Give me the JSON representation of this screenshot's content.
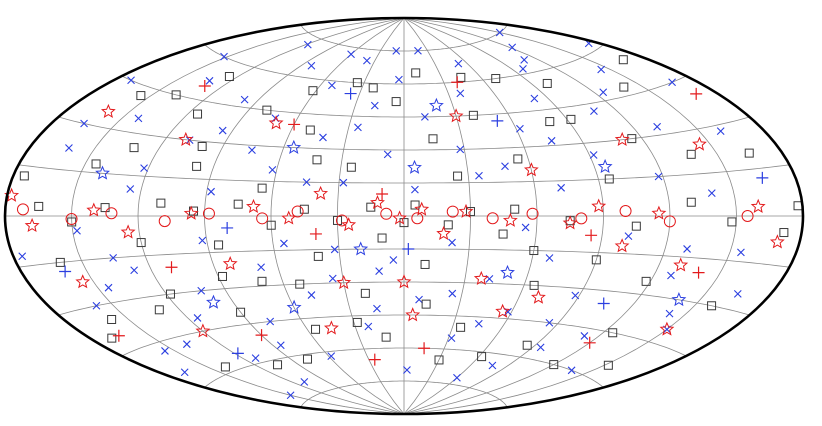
{
  "chart_data": {
    "type": "scatter",
    "projection": "aitoff",
    "coordinate_system": "galactic",
    "grid": true,
    "grid_longitudes_deg": [
      -150,
      -120,
      -90,
      -60,
      -30,
      0,
      30,
      60,
      90,
      120,
      150
    ],
    "grid_latitudes_deg": [
      -75,
      -60,
      -45,
      -30,
      -15,
      0,
      15,
      30,
      45,
      60,
      75
    ],
    "title": "",
    "xlabel": "",
    "ylabel": "",
    "legend": "none",
    "series": [
      {
        "marker": "x",
        "color": "#2b3fe0",
        "points": [
          [
            -175,
            62
          ],
          [
            -168,
            45
          ],
          [
            -160,
            28
          ],
          [
            -155,
            -12
          ],
          [
            -150,
            -40
          ],
          [
            -145,
            55
          ],
          [
            -140,
            8
          ],
          [
            -138,
            -60
          ],
          [
            -132,
            33
          ],
          [
            -128,
            -22
          ],
          [
            -122,
            70
          ],
          [
            -118,
            15
          ],
          [
            -112,
            -48
          ],
          [
            -108,
            42
          ],
          [
            -102,
            -8
          ],
          [
            -98,
            62
          ],
          [
            -92,
            25
          ],
          [
            -88,
            -33
          ],
          [
            -82,
            50
          ],
          [
            -78,
            -65
          ],
          [
            -72,
            12
          ],
          [
            -68,
            -18
          ],
          [
            -62,
            38
          ],
          [
            -58,
            -42
          ],
          [
            -52,
            68
          ],
          [
            -48,
            22
          ],
          [
            -42,
            -28
          ],
          [
            -38,
            55
          ],
          [
            -32,
            -55
          ],
          [
            -28,
            30
          ],
          [
            -22,
            -12
          ],
          [
            -18,
            75
          ],
          [
            -12,
            45
          ],
          [
            -8,
            -38
          ],
          [
            -3,
            -70
          ],
          [
            4,
            62
          ],
          [
            8,
            28
          ],
          [
            12,
            -25
          ],
          [
            18,
            50
          ],
          [
            22,
            -50
          ],
          [
            28,
            15
          ],
          [
            32,
            -15
          ],
          [
            38,
            70
          ],
          [
            42,
            35
          ],
          [
            48,
            -35
          ],
          [
            52,
            58
          ],
          [
            58,
            -62
          ],
          [
            62,
            20
          ],
          [
            68,
            -22
          ],
          [
            72,
            42
          ],
          [
            78,
            -45
          ],
          [
            82,
            65
          ],
          [
            88,
            10
          ],
          [
            92,
            -10
          ],
          [
            98,
            48
          ],
          [
            102,
            -30
          ],
          [
            108,
            30
          ],
          [
            112,
            -58
          ],
          [
            118,
            72
          ],
          [
            122,
            18
          ],
          [
            128,
            -20
          ],
          [
            132,
            52
          ],
          [
            138,
            -48
          ],
          [
            142,
            35
          ],
          [
            148,
            -5
          ],
          [
            152,
            60
          ],
          [
            158,
            -30
          ],
          [
            162,
            22
          ],
          [
            168,
            -55
          ],
          [
            172,
            45
          ],
          [
            176,
            -12
          ],
          [
            -165,
            -25
          ],
          [
            -142,
            -35
          ],
          [
            -125,
            48
          ],
          [
            -95,
            -55
          ],
          [
            -75,
            32
          ],
          [
            -45,
            -48
          ],
          [
            -25,
            -35
          ],
          [
            15,
            -42
          ],
          [
            35,
            -28
          ],
          [
            55,
            -12
          ],
          [
            75,
            28
          ],
          [
            95,
            35
          ],
          [
            115,
            -40
          ],
          [
            135,
            -15
          ],
          [
            155,
            -48
          ],
          [
            165,
            30
          ],
          [
            -110,
            65
          ],
          [
            -60,
            -72
          ],
          [
            10,
            75
          ],
          [
            60,
            72
          ],
          [
            110,
            -70
          ],
          [
            -150,
            75
          ],
          [
            150,
            -72
          ],
          [
            -85,
            -45
          ],
          [
            85,
            -55
          ],
          [
            -35,
            18
          ],
          [
            25,
            40
          ],
          [
            -5,
            12
          ],
          [
            5,
            -20
          ],
          [
            45,
            15
          ],
          [
            -55,
            -5
          ],
          [
            125,
            10
          ],
          [
            -130,
            -12
          ],
          [
            145,
            -25
          ]
        ]
      },
      {
        "marker": "square",
        "color": "#3a3a3a",
        "points": [
          [
            -178,
            3
          ],
          [
            -172,
            -5
          ],
          [
            -165,
            20
          ],
          [
            -158,
            -30
          ],
          [
            -148,
            -2
          ],
          [
            -140,
            48
          ],
          [
            -130,
            5
          ],
          [
            -125,
            -45
          ],
          [
            -115,
            30
          ],
          [
            -105,
            -4
          ],
          [
            -95,
            15
          ],
          [
            -90,
            -18
          ],
          [
            -80,
            40
          ],
          [
            -75,
            -2
          ],
          [
            -65,
            -30
          ],
          [
            -55,
            25
          ],
          [
            -50,
            3
          ],
          [
            -45,
            -8
          ],
          [
            -40,
            45
          ],
          [
            -35,
            -50
          ],
          [
            -30,
            2
          ],
          [
            -25,
            18
          ],
          [
            -20,
            -4
          ],
          [
            -15,
            35
          ],
          [
            -10,
            -22
          ],
          [
            -5,
            5
          ],
          [
            0,
            -3
          ],
          [
            5,
            52
          ],
          [
            10,
            -10
          ],
          [
            15,
            4
          ],
          [
            20,
            -35
          ],
          [
            25,
            22
          ],
          [
            30,
            -2
          ],
          [
            35,
            60
          ],
          [
            40,
            -18
          ],
          [
            45,
            3
          ],
          [
            50,
            38
          ],
          [
            55,
            -50
          ],
          [
            60,
            -4
          ],
          [
            65,
            12
          ],
          [
            70,
            -28
          ],
          [
            75,
            5
          ],
          [
            80,
            45
          ],
          [
            85,
            -12
          ],
          [
            90,
            -40
          ],
          [
            95,
            2
          ],
          [
            100,
            28
          ],
          [
            105,
            -62
          ],
          [
            110,
            5
          ],
          [
            115,
            40
          ],
          [
            120,
            -10
          ],
          [
            125,
            55
          ],
          [
            130,
            -35
          ],
          [
            135,
            3
          ],
          [
            140,
            -58
          ],
          [
            145,
            18
          ],
          [
            150,
            -2
          ],
          [
            155,
            42
          ],
          [
            160,
            -15
          ],
          [
            165,
            3
          ],
          [
            170,
            -40
          ],
          [
            175,
            12
          ],
          [
            -168,
            55
          ],
          [
            -152,
            -55
          ],
          [
            -138,
            22
          ],
          [
            -118,
            -25
          ],
          [
            -100,
            55
          ],
          [
            -85,
            -55
          ],
          [
            -70,
            60
          ],
          [
            -60,
            -15
          ],
          [
            -30,
            -65
          ],
          [
            -10,
            65
          ],
          [
            12,
            -55
          ],
          [
            28,
            -48
          ],
          [
            42,
            25
          ],
          [
            62,
            55
          ],
          [
            78,
            -62
          ],
          [
            98,
            20
          ],
          [
            118,
            -30
          ],
          [
            138,
            45
          ],
          [
            158,
            -35
          ],
          [
            -120,
            -60
          ],
          [
            -12,
            -40
          ],
          [
            52,
            -30
          ],
          [
            88,
            -25
          ],
          [
            -45,
            62
          ],
          [
            22,
            58
          ],
          [
            132,
            25
          ],
          [
            -92,
            40
          ],
          [
            -62,
            -62
          ]
        ]
      },
      {
        "marker": "star",
        "color": "#e31a1c",
        "points": [
          [
            -170,
            -8
          ],
          [
            -160,
            3
          ],
          [
            -145,
            25
          ],
          [
            -130,
            -18
          ],
          [
            -115,
            1
          ],
          [
            -100,
            -12
          ],
          [
            -88,
            4
          ],
          [
            -75,
            -3
          ],
          [
            -60,
            20
          ],
          [
            -48,
            -2
          ],
          [
            -38,
            -28
          ],
          [
            -28,
            2
          ],
          [
            -18,
            -8
          ],
          [
            -8,
            3
          ],
          [
            2,
            -1
          ],
          [
            12,
            6
          ],
          [
            25,
            -4
          ],
          [
            38,
            10
          ],
          [
            52,
            -1
          ],
          [
            68,
            4
          ],
          [
            82,
            -20
          ],
          [
            96,
            1
          ],
          [
            110,
            30
          ],
          [
            125,
            -6
          ],
          [
            140,
            2
          ],
          [
            155,
            -22
          ],
          [
            168,
            -3
          ],
          [
            178,
            6
          ],
          [
            -150,
            -40
          ],
          [
            -110,
            30
          ],
          [
            -70,
            -35
          ],
          [
            -30,
            45
          ],
          [
            30,
            -30
          ],
          [
            70,
            40
          ],
          [
            120,
            -45
          ],
          [
            160,
            35
          ],
          [
            0,
            -30
          ],
          [
            -5,
            -45
          ],
          [
            45,
            -50
          ],
          [
            -55,
            -42
          ]
        ]
      },
      {
        "marker": "circle",
        "color": "#e31a1c",
        "points": [
          [
            -155,
            0
          ],
          [
            -120,
            -2
          ],
          [
            -100,
            2
          ],
          [
            -80,
            -1
          ],
          [
            -58,
            1
          ],
          [
            -40,
            -1
          ],
          [
            -22,
            2
          ],
          [
            -6,
            -1
          ],
          [
            8,
            1
          ],
          [
            28,
            -2
          ],
          [
            48,
            2
          ],
          [
            64,
            -1
          ],
          [
            88,
            1
          ],
          [
            108,
            -2
          ],
          [
            132,
            1
          ],
          [
            150,
            -1
          ],
          [
            172,
            2
          ]
        ]
      },
      {
        "marker": "plus",
        "color": "#e31a1c",
        "points": [
          [
            -170,
            40
          ],
          [
            -120,
            -50
          ],
          [
            -85,
            -8
          ],
          [
            -40,
            60
          ],
          [
            -15,
            -60
          ],
          [
            10,
            10
          ],
          [
            40,
            -8
          ],
          [
            60,
            40
          ],
          [
            90,
            -50
          ],
          [
            130,
            50
          ],
          [
            165,
            -40
          ],
          [
            -140,
            -20
          ],
          [
            25,
            -65
          ],
          [
            110,
            -20
          ]
        ]
      },
      {
        "marker": "star",
        "color": "#2b3fe0",
        "points": [
          [
            -140,
            -30
          ],
          [
            -95,
            20
          ],
          [
            -50,
            -25
          ],
          [
            -20,
            50
          ],
          [
            20,
            -15
          ],
          [
            55,
            30
          ],
          [
            100,
            -35
          ],
          [
            140,
            15
          ],
          [
            -5,
            22
          ],
          [
            60,
            -40
          ]
        ]
      },
      {
        "marker": "plus",
        "color": "#2b3fe0",
        "points": [
          [
            -165,
            12
          ],
          [
            -105,
            -35
          ],
          [
            -52,
            42
          ],
          [
            -2,
            -15
          ],
          [
            36,
            55
          ],
          [
            80,
            -5
          ],
          [
            118,
            -55
          ],
          [
            160,
            -18
          ]
        ]
      }
    ]
  }
}
